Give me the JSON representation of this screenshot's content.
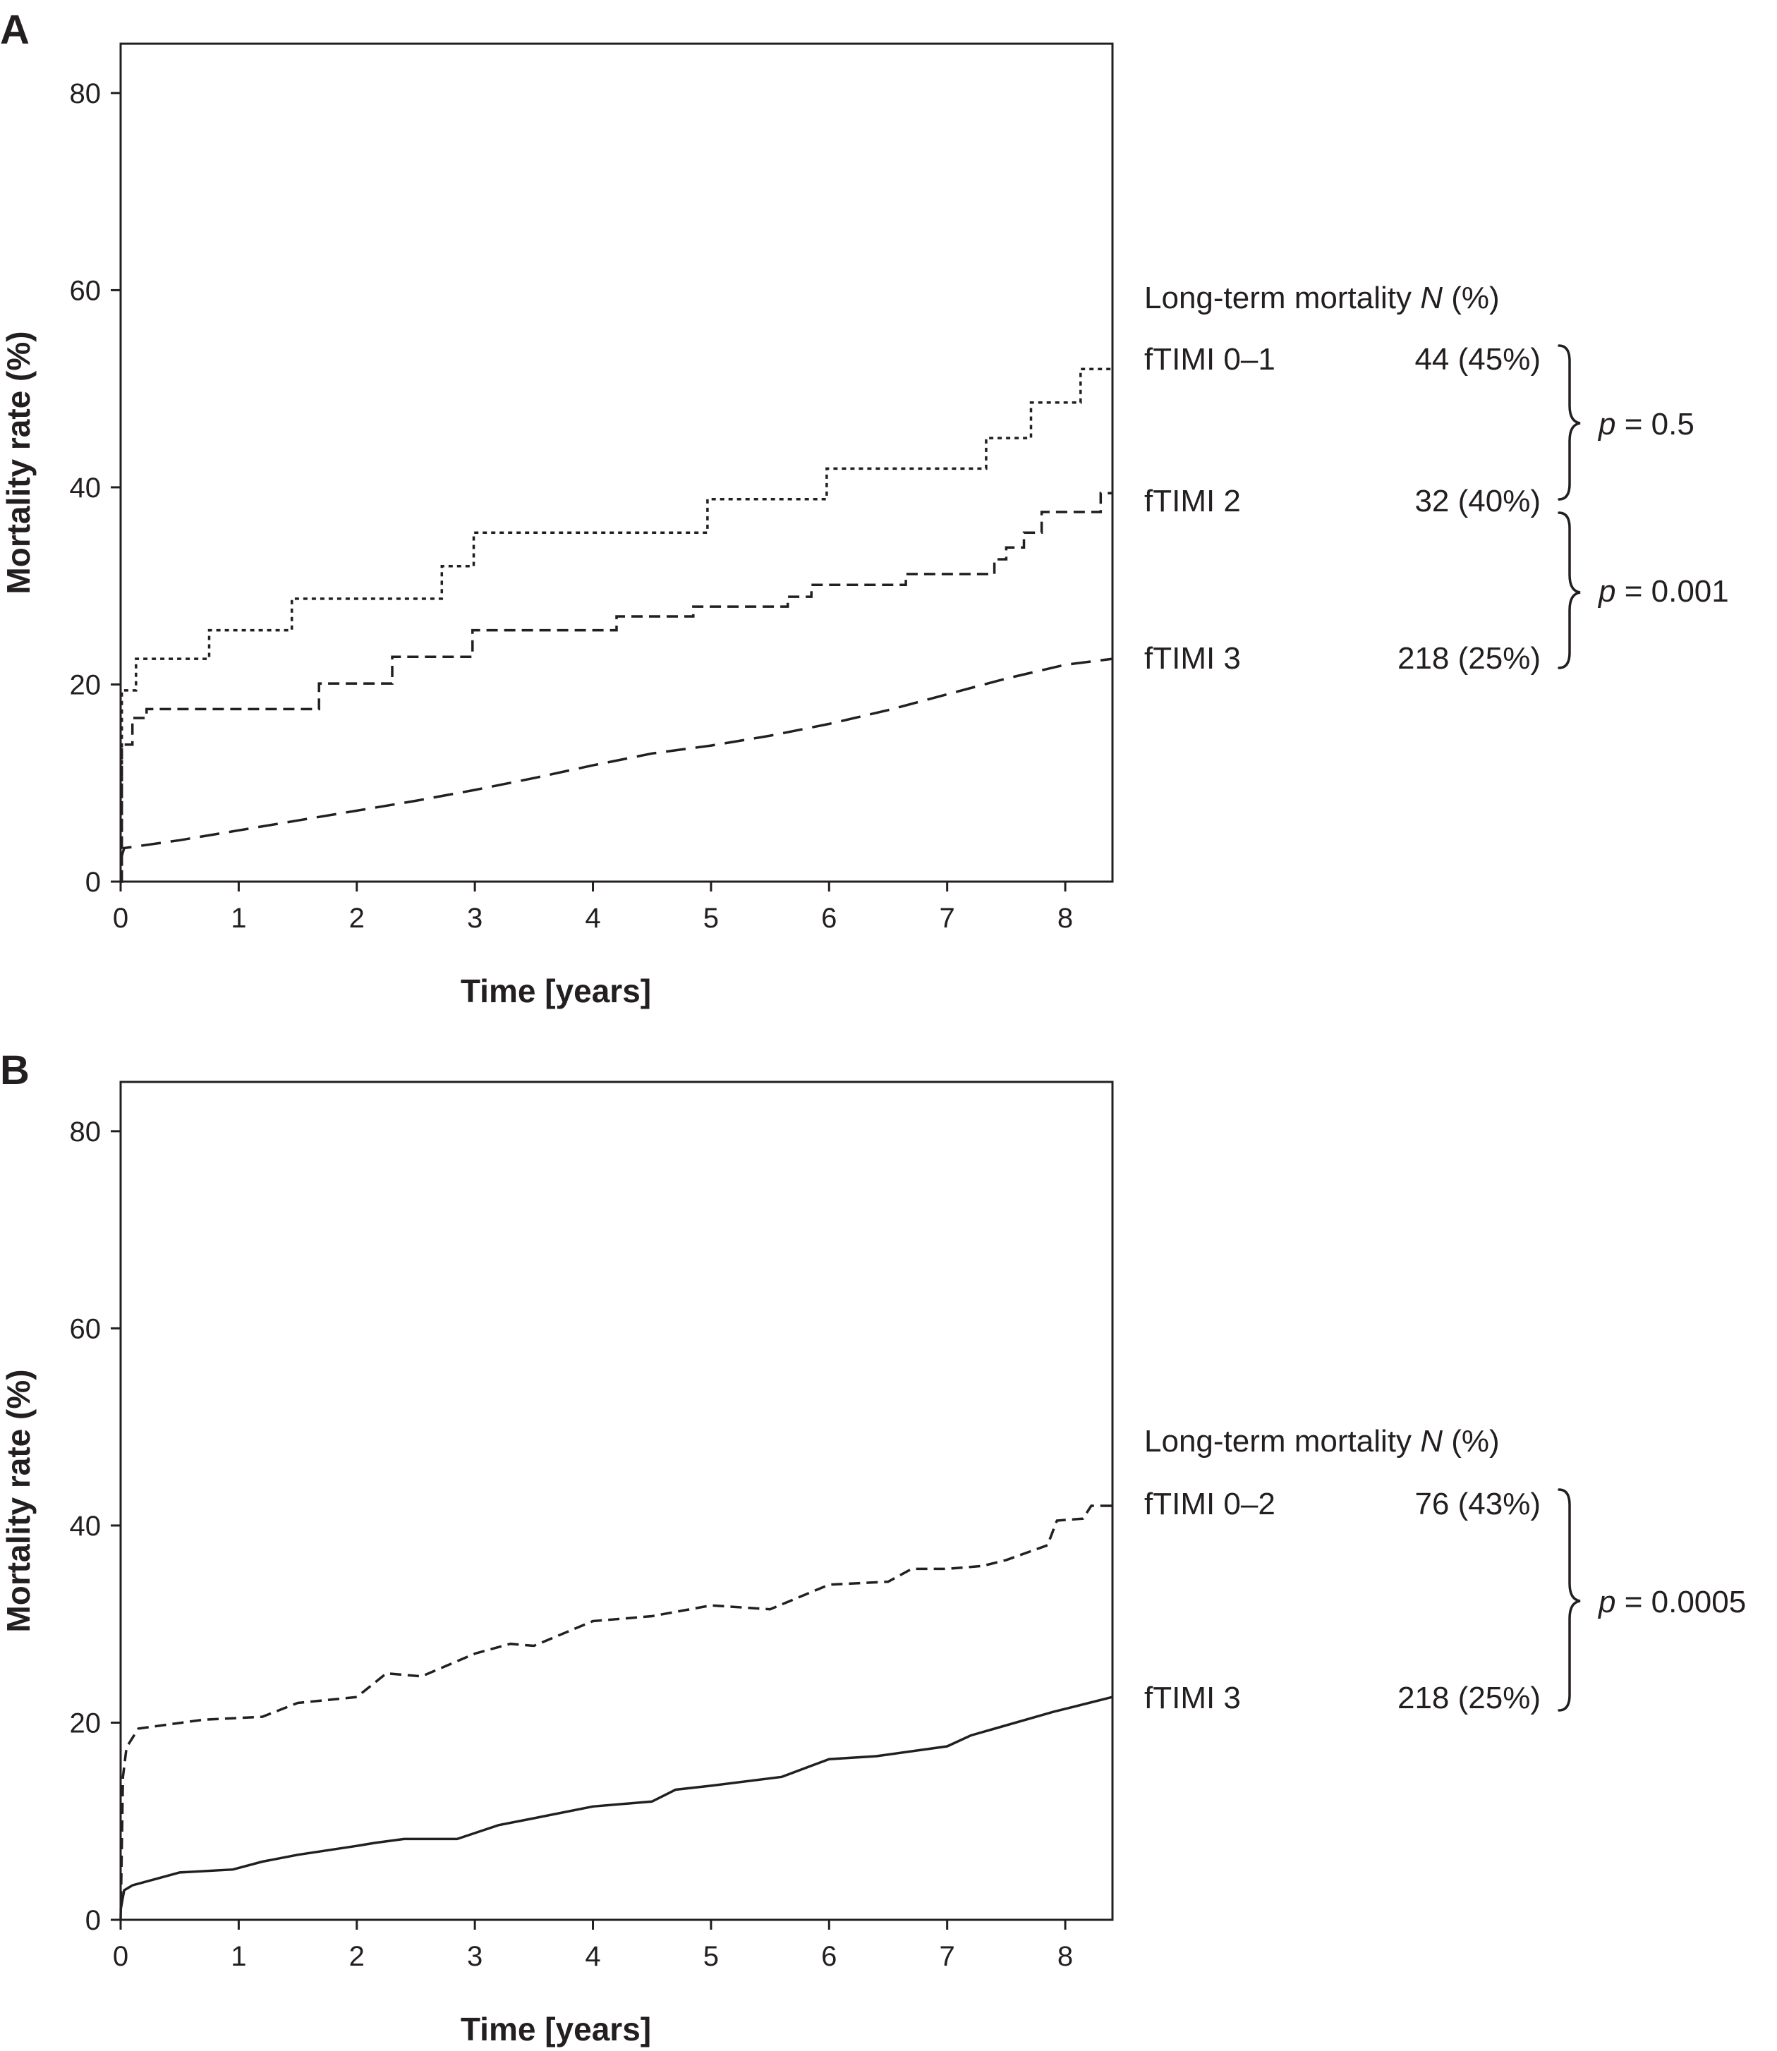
{
  "chart_data": [
    {
      "type": "line",
      "panel_label": "A",
      "xlabel": "Time [years]",
      "ylabel": "Mortality rate (%)",
      "xlim": [
        0,
        8.4
      ],
      "ylim": [
        0,
        85
      ],
      "xticks": [
        "0",
        "1",
        "2",
        "3",
        "4",
        "5",
        "6",
        "7",
        "8"
      ],
      "yticks": [
        "0",
        "20",
        "40",
        "60",
        "80"
      ],
      "legend_title": "Long-term mortality ",
      "legend_title_n": "N",
      "legend_title_pct": " (%)",
      "series": [
        {
          "name": "fTIMI 0–1",
          "value_label": "44 (45%)",
          "style": "dotted",
          "step": true,
          "x": [
            0,
            0.01,
            0.02,
            0.13,
            0.75,
            1.45,
            2.72,
            2.99,
            4.97,
            5.98,
            7.33,
            7.71,
            8.13,
            8.4
          ],
          "y": [
            0,
            19.4,
            19.4,
            22.6,
            25.5,
            28.7,
            32.0,
            35.4,
            38.8,
            41.9,
            45.0,
            48.6,
            52.0,
            52.0
          ]
        },
        {
          "name": "fTIMI 2",
          "value_label": "32 (40%)",
          "style": "dashed",
          "step": true,
          "x": [
            0,
            0.01,
            0.1,
            0.22,
            1.68,
            2.3,
            2.98,
            4.2,
            4.85,
            5.65,
            5.85,
            6.65,
            7.4,
            7.5,
            7.65,
            7.8,
            8.3,
            8.4
          ],
          "y": [
            0,
            13.9,
            16.6,
            17.5,
            20.1,
            22.8,
            25.5,
            26.9,
            27.9,
            28.9,
            30.1,
            31.2,
            32.7,
            33.9,
            35.4,
            37.5,
            39.4,
            39.4
          ]
        },
        {
          "name": "fTIMI 3",
          "value_label": "218 (25%)",
          "style": "longdash",
          "step": false,
          "x": [
            0,
            0.03,
            0.5,
            1.0,
            1.5,
            2.0,
            2.5,
            3.0,
            3.5,
            4.0,
            4.5,
            5.0,
            5.5,
            6.0,
            6.5,
            7.0,
            7.5,
            8.0,
            8.4
          ],
          "y": [
            2.2,
            3.4,
            4.2,
            5.2,
            6.2,
            7.2,
            8.2,
            9.3,
            10.5,
            11.8,
            13.0,
            13.8,
            14.8,
            16.0,
            17.4,
            19.0,
            20.6,
            22.0,
            22.6
          ]
        }
      ],
      "annotations": [
        {
          "label": "p",
          "value": " = 0.5"
        },
        {
          "label": "p",
          "value": " = 0.001"
        }
      ]
    },
    {
      "type": "line",
      "panel_label": "B",
      "xlabel": "Time [years]",
      "ylabel": "Mortality rate (%)",
      "xlim": [
        0,
        8.4
      ],
      "ylim": [
        0,
        85
      ],
      "xticks": [
        "0",
        "1",
        "2",
        "3",
        "4",
        "5",
        "6",
        "7",
        "8"
      ],
      "yticks": [
        "0",
        "20",
        "40",
        "60",
        "80"
      ],
      "legend_title": "Long-term mortality ",
      "legend_title_n": "N",
      "legend_title_pct": " (%)",
      "series": [
        {
          "name": "fTIMI 0–2",
          "value_label": "76 (43%)",
          "style": "dashed",
          "step": false,
          "x": [
            0,
            0.02,
            0.05,
            0.15,
            0.7,
            1.2,
            1.5,
            2.0,
            2.25,
            2.55,
            3.0,
            3.3,
            3.5,
            4.0,
            4.5,
            5.0,
            5.5,
            6.0,
            6.5,
            6.7,
            7.0,
            7.3,
            7.5,
            7.85,
            7.93,
            8.15,
            8.22,
            8.4
          ],
          "y": [
            0,
            14.5,
            17.5,
            19.4,
            20.3,
            20.6,
            22.0,
            22.6,
            25.0,
            24.7,
            27.0,
            28.0,
            27.8,
            30.3,
            30.8,
            31.9,
            31.5,
            34.0,
            34.3,
            35.6,
            35.6,
            35.9,
            36.5,
            38.0,
            40.5,
            40.7,
            42.0,
            42.0
          ]
        },
        {
          "name": "fTIMI 3",
          "value_label": "218 (25%)",
          "style": "solid",
          "step": false,
          "x": [
            0,
            0.03,
            0.1,
            0.5,
            0.95,
            1.2,
            1.5,
            2.0,
            2.15,
            2.4,
            2.85,
            3.0,
            3.2,
            3.5,
            4.0,
            4.5,
            4.7,
            5.0,
            5.6,
            6.0,
            6.4,
            7.0,
            7.2,
            7.9,
            8.4
          ],
          "y": [
            1.0,
            3.0,
            3.5,
            4.8,
            5.1,
            5.9,
            6.6,
            7.5,
            7.8,
            8.2,
            8.2,
            8.8,
            9.6,
            10.3,
            11.5,
            12.0,
            13.2,
            13.6,
            14.5,
            16.3,
            16.6,
            17.6,
            18.7,
            21.1,
            22.6
          ]
        }
      ],
      "annotations": [
        {
          "label": "p",
          "value": " = 0.0005"
        }
      ]
    }
  ]
}
